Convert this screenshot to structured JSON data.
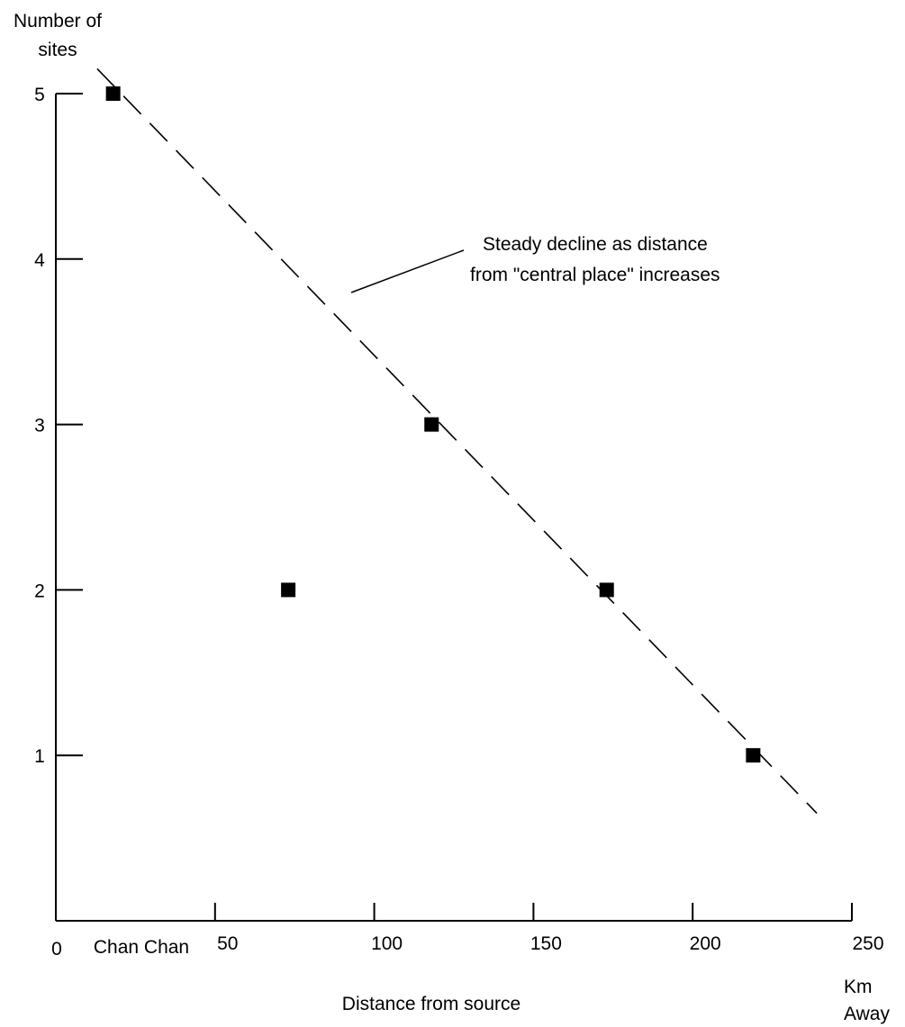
{
  "chart_data": {
    "type": "scatter",
    "title": "",
    "ylabel": "Number of sites",
    "ylabel_lines": [
      "Number of",
      "sites"
    ],
    "xlabel": "Distance from source",
    "x_unit": "Km Away",
    "x_unit_lines": [
      "Km",
      "Away"
    ],
    "xlim": [
      0,
      250
    ],
    "ylim": [
      0,
      5
    ],
    "x_ticks": [
      50,
      100,
      150,
      200,
      250
    ],
    "x_tick_labels": [
      "50",
      "100",
      "150",
      "200",
      "250"
    ],
    "y_ticks": [
      1,
      2,
      3,
      4,
      5
    ],
    "y_tick_labels": [
      "1",
      "2",
      "3",
      "4",
      "5"
    ],
    "origin_label": "0",
    "grid": false,
    "series": [
      {
        "points": [
          {
            "x": 18,
            "y": 5
          },
          {
            "x": 73,
            "y": 2
          },
          {
            "x": 118,
            "y": 3
          },
          {
            "x": 173,
            "y": 2
          },
          {
            "x": 219,
            "y": 1
          }
        ],
        "color": "#000000",
        "marker": "square"
      }
    ],
    "trend_line": {
      "from": {
        "x": 13,
        "y": 5.15
      },
      "to": {
        "x": 239,
        "y": 0.65
      },
      "style": "dashed",
      "color": "#000000"
    },
    "annotations": {
      "source_label": "Chan Chan",
      "note_lines": [
        "Steady decline as distance",
        "from \"central place\" increases"
      ]
    }
  }
}
